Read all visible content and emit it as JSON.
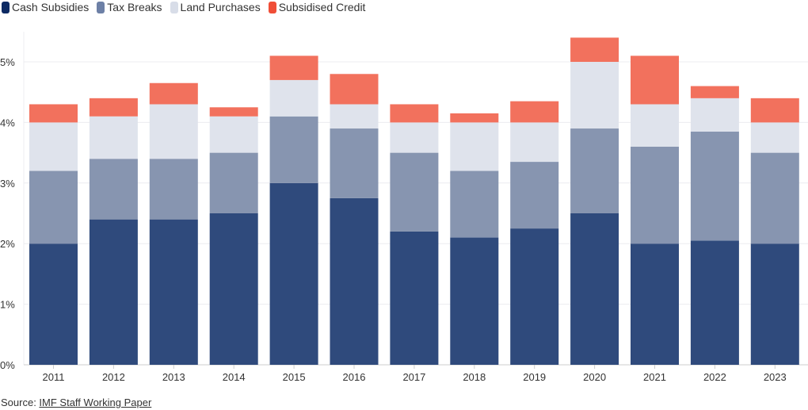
{
  "chart_data": {
    "type": "bar",
    "stacked": true,
    "categories": [
      "2011",
      "2012",
      "2013",
      "2014",
      "2015",
      "2016",
      "2017",
      "2018",
      "2019",
      "2020",
      "2021",
      "2022",
      "2023"
    ],
    "series": [
      {
        "name": "Cash Subsidies",
        "color": "#2f4a7c",
        "legend_color": "#0d2a63",
        "values": [
          2.0,
          2.4,
          2.4,
          2.5,
          3.0,
          2.75,
          2.2,
          2.1,
          2.25,
          2.5,
          2.0,
          2.05,
          2.0
        ]
      },
      {
        "name": "Tax Breaks",
        "color": "#8795b0",
        "legend_color": "#6d80a6",
        "values": [
          1.2,
          1.0,
          1.0,
          1.0,
          1.1,
          1.15,
          1.3,
          1.1,
          1.1,
          1.4,
          1.6,
          1.8,
          1.5
        ]
      },
      {
        "name": "Land Purchases",
        "color": "#dfe3ec",
        "legend_color": "#d8dde8",
        "values": [
          0.8,
          0.7,
          0.9,
          0.6,
          0.6,
          0.4,
          0.5,
          0.8,
          0.65,
          1.1,
          0.7,
          0.55,
          0.5
        ]
      },
      {
        "name": "Subsidised Credit",
        "color": "#f2715d",
        "legend_color": "#f04e37",
        "values": [
          0.3,
          0.3,
          0.35,
          0.15,
          0.4,
          0.5,
          0.3,
          0.15,
          0.35,
          0.4,
          0.8,
          0.2,
          0.4
        ]
      }
    ],
    "ylim": [
      0,
      5.5
    ],
    "yticks": [
      "0%",
      "1%",
      "2%",
      "3%",
      "4%",
      "5%"
    ],
    "grid": true,
    "legend": "top-left",
    "xlabel": "",
    "ylabel": ""
  },
  "source": {
    "label": "Source: ",
    "link": "IMF Staff Working Paper"
  }
}
